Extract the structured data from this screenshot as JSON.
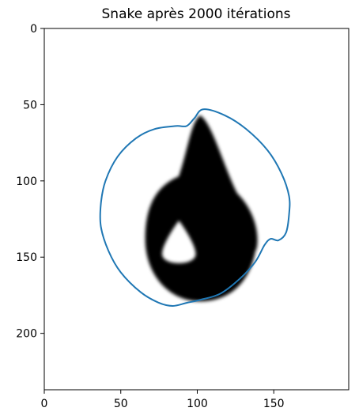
{
  "chart_data": {
    "type": "image_with_contour",
    "title": "Snake après 2000 itérations",
    "xlim": [
      0,
      199
    ],
    "ylim": [
      237,
      0
    ],
    "y_inverted": true,
    "x_ticks": [
      0,
      50,
      100,
      150
    ],
    "y_ticks": [
      0,
      50,
      100,
      150,
      200
    ],
    "grid": false,
    "image": {
      "description_free": true,
      "colormap": "gray",
      "drop_apex": [
        102,
        57
      ],
      "drop_body_center": [
        102,
        138
      ],
      "drop_body_radius": [
        36,
        41
      ],
      "hole_apex": [
        88,
        126
      ],
      "hole_center": [
        88,
        148
      ],
      "hole_radius": [
        11,
        8
      ],
      "colors": {
        "shape": "#000000",
        "background": "#ffffff"
      }
    },
    "series": [
      {
        "color": "#1f77b4",
        "closed": true,
        "points": [
          [
            104,
            53
          ],
          [
            118,
            57
          ],
          [
            132,
            66
          ],
          [
            146,
            80
          ],
          [
            155,
            95
          ],
          [
            160,
            110
          ],
          [
            160,
            122
          ],
          [
            158,
            134
          ],
          [
            153,
            139
          ],
          [
            148,
            138
          ],
          [
            144,
            142
          ],
          [
            138,
            153
          ],
          [
            128,
            164
          ],
          [
            115,
            174
          ],
          [
            102,
            178
          ],
          [
            93,
            180
          ],
          [
            84,
            182
          ],
          [
            75,
            180
          ],
          [
            63,
            173
          ],
          [
            50,
            160
          ],
          [
            42,
            146
          ],
          [
            37,
            130
          ],
          [
            37,
            115
          ],
          [
            40,
            100
          ],
          [
            48,
            84
          ],
          [
            60,
            72
          ],
          [
            72,
            66
          ],
          [
            86,
            64
          ],
          [
            93,
            64
          ],
          [
            98,
            59
          ]
        ]
      }
    ]
  }
}
